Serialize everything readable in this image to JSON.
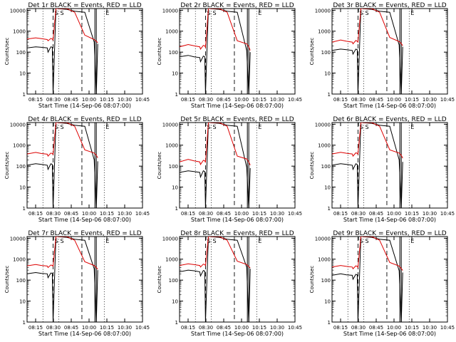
{
  "figure": {
    "panels": [
      {
        "title": "Det 1r BLACK = Events, RED = LLD"
      },
      {
        "title": "Det 2r BLACK = Events, RED = LLD"
      },
      {
        "title": "Det 3r BLACK = Events, RED = LLD"
      },
      {
        "title": "Det 4r BLACK = Events, RED = LLD"
      },
      {
        "title": "Det 5r BLACK = Events, RED = LLD"
      },
      {
        "title": "Det 6r BLACK = Events, RED = LLD"
      },
      {
        "title": "Det 7r BLACK = Events, RED = LLD"
      },
      {
        "title": "Det 8r BLACK = Events, RED = LLD"
      },
      {
        "title": "Det 9r BLACK = Events, RED = LLD"
      }
    ],
    "ylabel": "Counts/sec",
    "xlabel": "Start Time (14-Sep-06 08:07:00)",
    "xticks": [
      "08:15",
      "08:30",
      "08:45",
      "10:00",
      "10:15",
      "10:30",
      "10:45"
    ],
    "yticks": [
      "1",
      "10",
      "100",
      "1000",
      "10000"
    ],
    "marker_labels": [
      "S",
      "S",
      "E"
    ],
    "colors": {
      "events": "#000000",
      "lld": "#dd0000",
      "axes": "#000000",
      "background": "#ffffff"
    }
  },
  "chart_data": [
    {
      "type": "line",
      "title": "Det 1r BLACK = Events, RED = LLD",
      "xlabel": "Start Time (14-Sep-06 08:07:00)",
      "ylabel": "Counts/sec",
      "yscale": "log",
      "ylim": [
        1,
        12000
      ],
      "xlim": [
        0,
        160
      ],
      "grid": false,
      "x": [
        0,
        12,
        20,
        28,
        29,
        33,
        35,
        36,
        40,
        55,
        66,
        80,
        93,
        96,
        98
      ],
      "series": [
        {
          "name": "Events",
          "color": "#000000",
          "values": [
            160,
            180,
            170,
            160,
            100,
            180,
            170,
            1,
            14000,
            11000,
            9000,
            8000,
            300,
            1,
            250
          ]
        },
        {
          "name": "LLD",
          "color": "#dd0000",
          "values": [
            420,
            480,
            440,
            400,
            350,
            450,
            420,
            380,
            14000,
            12000,
            8000,
            650,
            400,
            330,
            280
          ]
        }
      ],
      "vlines_dashed": [
        36,
        76
      ],
      "vlines_dotted": [
        22,
        44,
        107
      ],
      "vlines_solid": [
        94,
        96
      ]
    },
    {
      "type": "line",
      "title": "Det 2r BLACK = Events, RED = LLD",
      "xlabel": "Start Time (14-Sep-06 08:07:00)",
      "ylabel": "Counts/sec",
      "yscale": "log",
      "ylim": [
        1,
        12000
      ],
      "xlim": [
        0,
        160
      ],
      "grid": false,
      "x": [
        0,
        12,
        20,
        28,
        29,
        33,
        35,
        36,
        40,
        55,
        66,
        80,
        93,
        96,
        98
      ],
      "series": [
        {
          "name": "Events",
          "color": "#000000",
          "values": [
            60,
            70,
            60,
            55,
            35,
            65,
            60,
            1,
            14000,
            11000,
            9000,
            8000,
            120,
            1,
            100
          ]
        },
        {
          "name": "LLD",
          "color": "#dd0000",
          "values": [
            180,
            230,
            200,
            180,
            140,
            210,
            200,
            170,
            14000,
            12000,
            8000,
            350,
            250,
            180,
            120
          ]
        }
      ],
      "vlines_dashed": [
        36,
        76
      ],
      "vlines_dotted": [
        22,
        44,
        107
      ],
      "vlines_solid": [
        94,
        96
      ]
    },
    {
      "type": "line",
      "title": "Det 3r BLACK = Events, RED = LLD",
      "xlabel": "Start Time (14-Sep-06 08:07:00)",
      "ylabel": "Counts/sec",
      "yscale": "log",
      "ylim": [
        1,
        12000
      ],
      "xlim": [
        0,
        160
      ],
      "grid": false,
      "x": [
        0,
        12,
        20,
        28,
        29,
        33,
        35,
        36,
        40,
        55,
        66,
        80,
        93,
        96,
        98
      ],
      "series": [
        {
          "name": "Events",
          "color": "#000000",
          "values": [
            120,
            140,
            130,
            120,
            80,
            140,
            130,
            1,
            14000,
            11000,
            9000,
            8000,
            220,
            1,
            180
          ]
        },
        {
          "name": "LLD",
          "color": "#dd0000",
          "values": [
            300,
            380,
            330,
            300,
            250,
            360,
            330,
            300,
            14000,
            12000,
            8000,
            500,
            320,
            260,
            200
          ]
        }
      ],
      "vlines_dashed": [
        36,
        76
      ],
      "vlines_dotted": [
        22,
        44,
        107
      ],
      "vlines_solid": [
        94,
        96
      ]
    },
    {
      "type": "line",
      "title": "Det 4r BLACK = Events, RED = LLD",
      "xlabel": "Start Time (14-Sep-06 08:07:00)",
      "ylabel": "Counts/sec",
      "yscale": "log",
      "ylim": [
        1,
        12000
      ],
      "xlim": [
        0,
        160
      ],
      "grid": false,
      "x": [
        0,
        12,
        20,
        28,
        29,
        33,
        35,
        36,
        40,
        55,
        66,
        80,
        93,
        96,
        98
      ],
      "series": [
        {
          "name": "Events",
          "color": "#000000",
          "values": [
            110,
            130,
            120,
            110,
            70,
            130,
            120,
            1,
            14000,
            11000,
            9000,
            8000,
            200,
            1,
            170
          ]
        },
        {
          "name": "LLD",
          "color": "#dd0000",
          "values": [
            380,
            450,
            400,
            370,
            300,
            420,
            400,
            360,
            14000,
            12000,
            8000,
            600,
            420,
            330,
            250
          ]
        }
      ],
      "vlines_dashed": [
        36,
        76
      ],
      "vlines_dotted": [
        22,
        44,
        107
      ],
      "vlines_solid": [
        94,
        96
      ]
    },
    {
      "type": "line",
      "title": "Det 5r BLACK = Events, RED = LLD",
      "xlabel": "Start Time (14-Sep-06 08:07:00)",
      "ylabel": "Counts/sec",
      "yscale": "log",
      "ylim": [
        1,
        12000
      ],
      "xlim": [
        0,
        160
      ],
      "grid": false,
      "x": [
        0,
        12,
        20,
        28,
        29,
        33,
        35,
        36,
        40,
        55,
        66,
        80,
        93,
        96,
        98
      ],
      "series": [
        {
          "name": "Events",
          "color": "#000000",
          "values": [
            50,
            60,
            55,
            50,
            30,
            60,
            55,
            1,
            14000,
            11000,
            9000,
            8000,
            90,
            1,
            80
          ]
        },
        {
          "name": "LLD",
          "color": "#dd0000",
          "values": [
            160,
            210,
            180,
            160,
            120,
            190,
            180,
            150,
            14000,
            12000,
            8000,
            300,
            220,
            160,
            110
          ]
        }
      ],
      "vlines_dashed": [
        36,
        76
      ],
      "vlines_dotted": [
        22,
        44,
        107
      ],
      "vlines_solid": [
        94,
        96
      ]
    },
    {
      "type": "line",
      "title": "Det 6r BLACK = Events, RED = LLD",
      "xlabel": "Start Time (14-Sep-06 08:07:00)",
      "ylabel": "Counts/sec",
      "yscale": "log",
      "ylim": [
        1,
        12000
      ],
      "xlim": [
        0,
        160
      ],
      "grid": false,
      "x": [
        0,
        12,
        20,
        28,
        29,
        33,
        35,
        36,
        40,
        55,
        66,
        80,
        93,
        96,
        98
      ],
      "series": [
        {
          "name": "Events",
          "color": "#000000",
          "values": [
            110,
            130,
            120,
            110,
            70,
            130,
            120,
            1,
            14000,
            11000,
            9000,
            8000,
            200,
            1,
            160
          ]
        },
        {
          "name": "LLD",
          "color": "#dd0000",
          "values": [
            380,
            460,
            410,
            380,
            300,
            430,
            410,
            370,
            14000,
            12000,
            8000,
            600,
            420,
            330,
            240
          ]
        }
      ],
      "vlines_dashed": [
        36,
        76
      ],
      "vlines_dotted": [
        22,
        44,
        107
      ],
      "vlines_solid": [
        94,
        96
      ]
    },
    {
      "type": "line",
      "title": "Det 7r BLACK = Events, RED = LLD",
      "xlabel": "Start Time (14-Sep-06 08:07:00)",
      "ylabel": "Counts/sec",
      "yscale": "log",
      "ylim": [
        1,
        12000
      ],
      "xlim": [
        0,
        160
      ],
      "grid": false,
      "x": [
        0,
        12,
        20,
        28,
        29,
        33,
        35,
        36,
        40,
        55,
        66,
        80,
        93,
        96,
        98
      ],
      "series": [
        {
          "name": "Events",
          "color": "#000000",
          "values": [
            200,
            230,
            210,
            200,
            130,
            220,
            210,
            1,
            14000,
            11000,
            9000,
            8000,
            350,
            1,
            300
          ]
        },
        {
          "name": "LLD",
          "color": "#dd0000",
          "values": [
            480,
            560,
            500,
            470,
            400,
            530,
            500,
            460,
            14000,
            12000,
            8000,
            750,
            500,
            400,
            330
          ]
        }
      ],
      "vlines_dashed": [
        36,
        76
      ],
      "vlines_dotted": [
        22,
        44,
        107
      ],
      "vlines_solid": [
        94,
        96
      ]
    },
    {
      "type": "line",
      "title": "Det 8r BLACK = Events, RED = LLD",
      "xlabel": "Start Time (14-Sep-06 08:07:00)",
      "ylabel": "Counts/sec",
      "yscale": "log",
      "ylim": [
        1,
        12000
      ],
      "xlim": [
        0,
        160
      ],
      "grid": false,
      "x": [
        0,
        12,
        20,
        28,
        29,
        33,
        35,
        36,
        40,
        55,
        66,
        80,
        93,
        96,
        98
      ],
      "series": [
        {
          "name": "Events",
          "color": "#000000",
          "values": [
            250,
            300,
            280,
            250,
            160,
            290,
            270,
            1,
            14000,
            11000,
            9000,
            8000,
            420,
            1,
            350
          ]
        },
        {
          "name": "LLD",
          "color": "#dd0000",
          "values": [
            500,
            600,
            550,
            500,
            420,
            580,
            550,
            500,
            14000,
            12000,
            8000,
            800,
            560,
            440,
            380
          ]
        }
      ],
      "vlines_dashed": [
        36,
        76
      ],
      "vlines_dotted": [
        22,
        44,
        107
      ],
      "vlines_solid": [
        94,
        96
      ]
    },
    {
      "type": "line",
      "title": "Det 9r BLACK = Events, RED = LLD",
      "xlabel": "Start Time (14-Sep-06 08:07:00)",
      "ylabel": "Counts/sec",
      "yscale": "log",
      "ylim": [
        1,
        12000
      ],
      "xlim": [
        0,
        160
      ],
      "grid": false,
      "x": [
        0,
        12,
        20,
        28,
        29,
        33,
        35,
        36,
        40,
        55,
        66,
        80,
        93,
        96,
        98
      ],
      "series": [
        {
          "name": "Events",
          "color": "#000000",
          "values": [
            170,
            200,
            180,
            170,
            110,
            190,
            180,
            1,
            14000,
            11000,
            9000,
            8000,
            280,
            1,
            230
          ]
        },
        {
          "name": "LLD",
          "color": "#dd0000",
          "values": [
            420,
            500,
            450,
            420,
            350,
            480,
            450,
            400,
            14000,
            12000,
            8000,
            700,
            470,
            360,
            290
          ]
        }
      ],
      "vlines_dashed": [
        36,
        76
      ],
      "vlines_dotted": [
        22,
        44,
        107
      ],
      "vlines_solid": [
        94,
        96
      ]
    }
  ]
}
